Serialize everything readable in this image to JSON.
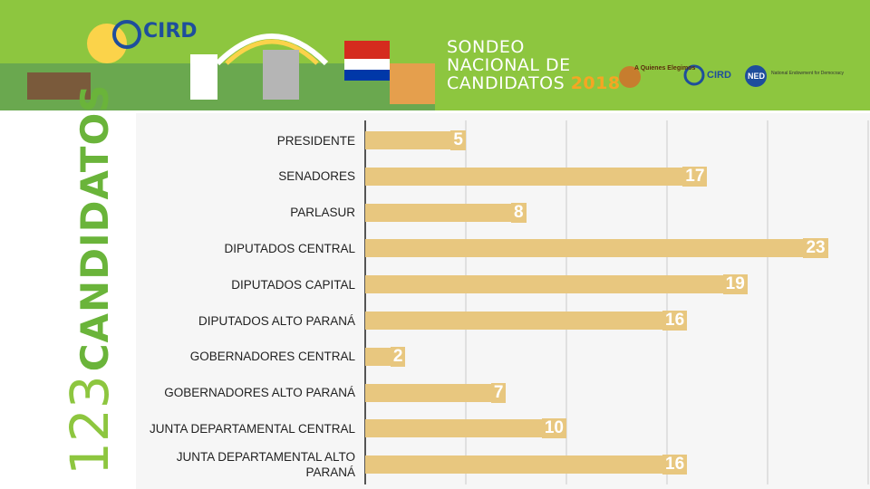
{
  "header": {
    "survey_title_line1": "SONDEO",
    "survey_title_line2": "NACIONAL DE",
    "survey_title_line3": "CANDIDATOS",
    "survey_year": "2018",
    "logo_cird": "CIRD",
    "logo_partner": "A Quienes Elegimos",
    "logo_ned": "NED",
    "logo_ned_text": "National Endowment for Democracy"
  },
  "side_title": {
    "number": "123",
    "word": "CANDIDATOS"
  },
  "colors": {
    "banner": "#8dc63f",
    "bar": "#e8c77f",
    "title_green": "#6ab43a"
  },
  "chart_data": {
    "type": "bar",
    "orientation": "horizontal",
    "categories": [
      "PRESIDENTE",
      "SENADORES",
      "PARLASUR",
      "DIPUTADOS CENTRAL",
      "DIPUTADOS CAPITAL",
      "DIPUTADOS ALTO PARANÁ",
      "GOBERNADORES CENTRAL",
      "GOBERNADORES ALTO PARANÁ",
      "JUNTA DEPARTAMENTAL CENTRAL",
      "JUNTA DEPARTAMENTAL ALTO PARANÁ"
    ],
    "values": [
      5,
      17,
      8,
      23,
      19,
      16,
      2,
      7,
      10,
      16
    ],
    "xlim": [
      0,
      25
    ],
    "grid": true
  }
}
